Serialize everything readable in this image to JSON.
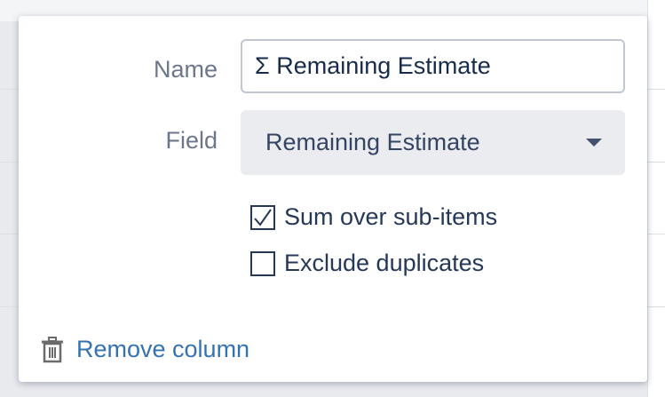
{
  "dialog": {
    "name_label": "Name",
    "name_value": "Σ Remaining Estimate",
    "field_label": "Field",
    "field_value": "Remaining Estimate",
    "options": [
      {
        "label": "Sum over sub-items",
        "checked": true
      },
      {
        "label": "Exclude duplicates",
        "checked": false
      }
    ],
    "remove_label": "Remove column",
    "remove_icon": "trash-icon"
  },
  "colors": {
    "link": "#3572b0",
    "label": "#6b778c",
    "select_bg": "#ebecf0"
  }
}
